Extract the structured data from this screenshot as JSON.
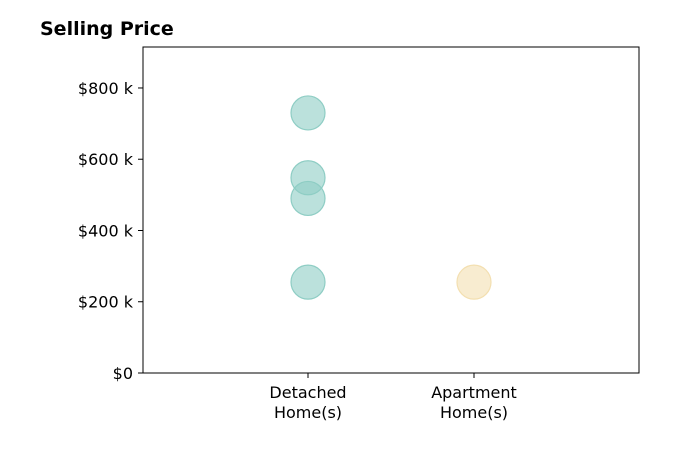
{
  "chart_data": {
    "type": "scatter",
    "title": "Selling Price",
    "xlabel": "",
    "ylabel": "",
    "categories": [
      {
        "line1": "Detached",
        "line2": "Home(s)"
      },
      {
        "line1": "Apartment",
        "line2": "Home(s)"
      }
    ],
    "series": [
      {
        "category_index": 0,
        "values": [
          730000,
          548000,
          490000,
          255000
        ],
        "color": "#8ecdc4"
      },
      {
        "category_index": 1,
        "values": [
          255000
        ],
        "color": "#f3dfb0"
      }
    ],
    "ylim": [
      0,
      915000
    ],
    "y_ticks": [
      0,
      200000,
      400000,
      600000,
      800000
    ],
    "y_tick_labels": [
      "$0",
      "$200 k",
      "$400 k",
      "$600 k",
      "$800 k"
    ],
    "grid": false,
    "legend": "none"
  }
}
